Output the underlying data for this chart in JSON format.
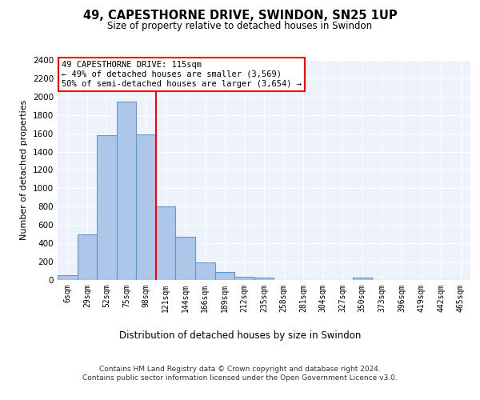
{
  "title": "49, CAPESTHORNE DRIVE, SWINDON, SN25 1UP",
  "subtitle": "Size of property relative to detached houses in Swindon",
  "xlabel": "Distribution of detached houses by size in Swindon",
  "ylabel": "Number of detached properties",
  "categories": [
    "6sqm",
    "29sqm",
    "52sqm",
    "75sqm",
    "98sqm",
    "121sqm",
    "144sqm",
    "166sqm",
    "189sqm",
    "212sqm",
    "235sqm",
    "258sqm",
    "281sqm",
    "304sqm",
    "327sqm",
    "350sqm",
    "373sqm",
    "396sqm",
    "419sqm",
    "442sqm",
    "465sqm"
  ],
  "values": [
    55,
    500,
    1580,
    1950,
    1590,
    800,
    475,
    195,
    90,
    35,
    25,
    0,
    0,
    0,
    0,
    25,
    0,
    0,
    0,
    0,
    0
  ],
  "bar_color": "#aec6e8",
  "bar_edge_color": "#5b9bd5",
  "ylim": [
    0,
    2400
  ],
  "yticks": [
    0,
    200,
    400,
    600,
    800,
    1000,
    1200,
    1400,
    1600,
    1800,
    2000,
    2200,
    2400
  ],
  "property_line_x": 4.5,
  "annotation_text": "49 CAPESTHORNE DRIVE: 115sqm\n← 49% of detached houses are smaller (3,569)\n50% of semi-detached houses are larger (3,654) →",
  "footer": "Contains HM Land Registry data © Crown copyright and database right 2024.\nContains public sector information licensed under the Open Government Licence v3.0.",
  "background_color": "#eef3fb",
  "grid_color": "#ffffff",
  "fig_bg": "#ffffff"
}
